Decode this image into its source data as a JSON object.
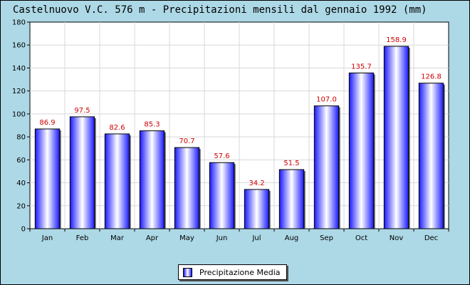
{
  "chart_data": {
    "type": "bar",
    "title": "Castelnuovo V.C. 576 m - Precipitazioni mensili dal gennaio 1992 (mm)",
    "categories": [
      "Jan",
      "Feb",
      "Mar",
      "Apr",
      "May",
      "Jun",
      "Jul",
      "Aug",
      "Sep",
      "Oct",
      "Nov",
      "Dec"
    ],
    "series": [
      {
        "name": "Precipitazione Media",
        "values": [
          86.9,
          97.5,
          82.6,
          85.3,
          70.7,
          57.6,
          34.2,
          51.5,
          107.0,
          135.7,
          158.9,
          126.8
        ],
        "value_labels": [
          "86.9",
          "97.5",
          "82.6",
          "85.3",
          "70.7",
          "57.6",
          "34.2",
          "51.5",
          "107.0",
          "135.7",
          "158.9",
          "126.8"
        ]
      }
    ],
    "y_ticks": [
      "0",
      "20",
      "40",
      "60",
      "80",
      "100",
      "120",
      "140",
      "160",
      "180"
    ],
    "xlabel": "",
    "ylabel": "",
    "ylim": [
      0,
      180
    ],
    "grid": true,
    "legend_position": "bottom-center",
    "colors": {
      "bar_edge": "#1a1aff",
      "bar_center": "#ffffff",
      "value_label": "#d00000",
      "background": "#add8e6",
      "plot_background": "#ffffff",
      "grid": "#d8d8d8"
    }
  }
}
